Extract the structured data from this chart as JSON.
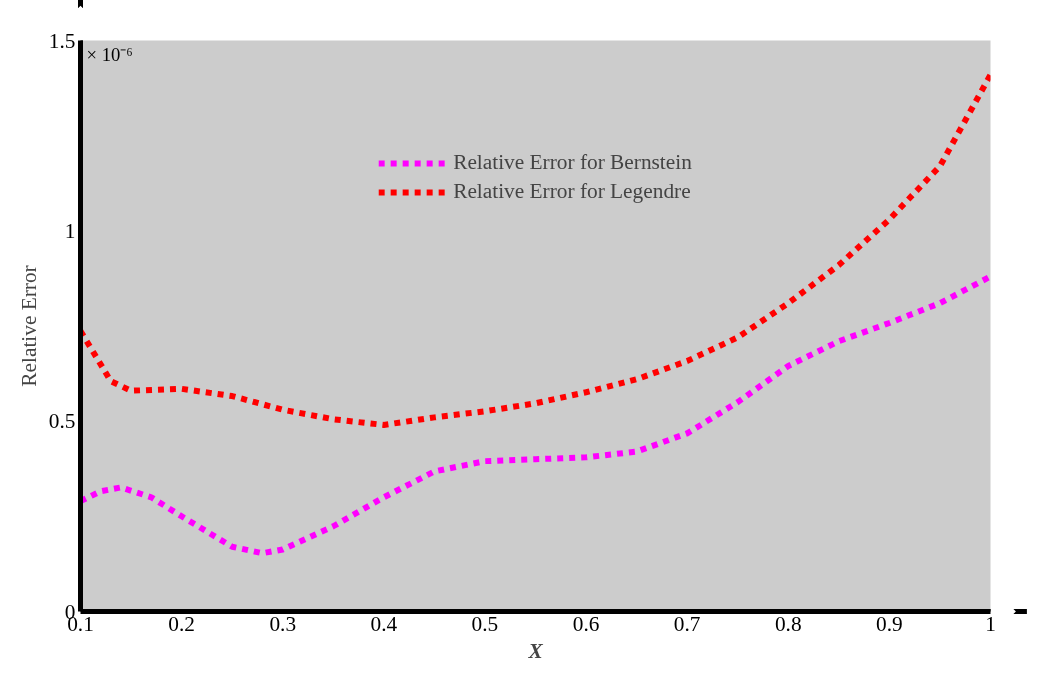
{
  "chart_data": {
    "type": "line",
    "xlabel": "X",
    "ylabel": "Relative Error",
    "annotations": [
      "× 10⁻⁶"
    ],
    "xlim": [
      0.1,
      1
    ],
    "ylim": [
      0,
      1.5
    ],
    "xticks": [
      0.1,
      0.2,
      0.3,
      0.4,
      0.5,
      0.6,
      0.7,
      0.8,
      0.9,
      1
    ],
    "yticks": [
      0,
      0.5,
      1,
      1.5
    ],
    "grid": false,
    "legend": "top",
    "line_style": "dashed",
    "marker": "none",
    "series": [
      {
        "name": "Relative Error for Bernstein",
        "color": "#ff00ff",
        "x": [
          0.1,
          0.12,
          0.14,
          0.17,
          0.2,
          0.25,
          0.28,
          0.3,
          0.35,
          0.4,
          0.45,
          0.5,
          0.55,
          0.6,
          0.65,
          0.7,
          0.75,
          0.8,
          0.85,
          0.9,
          0.95,
          1.0
        ],
        "values": [
          0.29,
          0.316,
          0.326,
          0.3,
          0.25,
          0.17,
          0.153,
          0.163,
          0.224,
          0.3,
          0.368,
          0.395,
          0.4,
          0.405,
          0.42,
          0.468,
          0.55,
          0.645,
          0.71,
          0.758,
          0.81,
          0.88
        ]
      },
      {
        "name": "Relative Error for Legendre",
        "color": "#ff0000",
        "x": [
          0.1,
          0.13,
          0.15,
          0.2,
          0.25,
          0.3,
          0.35,
          0.4,
          0.45,
          0.5,
          0.55,
          0.6,
          0.65,
          0.7,
          0.75,
          0.8,
          0.85,
          0.9,
          0.95,
          1.0
        ],
        "values": [
          0.737,
          0.605,
          0.58,
          0.585,
          0.566,
          0.53,
          0.505,
          0.49,
          0.51,
          0.526,
          0.547,
          0.576,
          0.61,
          0.658,
          0.72,
          0.81,
          0.91,
          1.03,
          1.17,
          1.41
        ]
      }
    ]
  }
}
